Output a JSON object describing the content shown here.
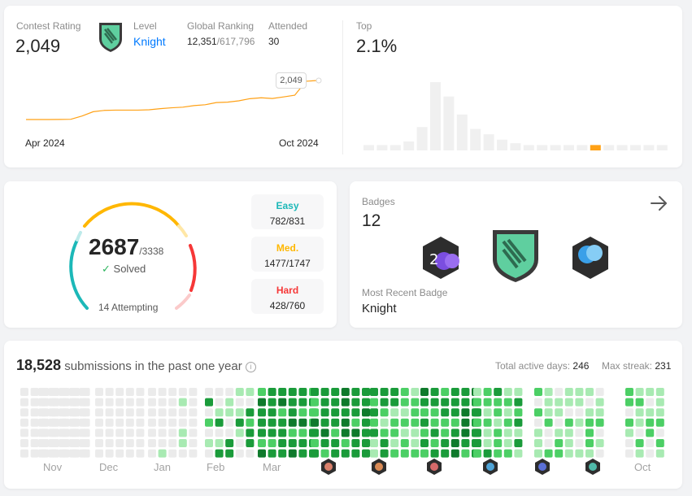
{
  "contest": {
    "rating_label": "Contest Rating",
    "rating_value": "2,049",
    "level_label": "Level",
    "level_value": "Knight",
    "global_ranking_label": "Global Ranking",
    "global_rank": "12,351",
    "global_total": "/617,796",
    "attended_label": "Attended",
    "attended_value": "30",
    "chart_start": "Apr 2024",
    "chart_end": "Oct 2024",
    "tooltip_value": "2,049",
    "top_label": "Top",
    "top_value": "2.1%"
  },
  "solved": {
    "solved_count": "2687",
    "total": "/3338",
    "solved_label": "Solved",
    "attempting": "14 Attempting",
    "easy_label": "Easy",
    "easy_value": "782/831",
    "medium_label": "Med.",
    "medium_value": "1477/1747",
    "hard_label": "Hard",
    "hard_value": "428/760"
  },
  "badges": {
    "label": "Badges",
    "count": "12",
    "recent_label": "Most Recent Badge",
    "recent_value": "Knight"
  },
  "heatmap": {
    "submissions": "18,528",
    "submissions_text": "submissions in the past one year",
    "active_days_label": "Total active days:",
    "active_days_value": "246",
    "max_streak_label": "Max streak:",
    "max_streak_value": "231",
    "months": [
      "Nov",
      "Dec",
      "Jan",
      "Feb",
      "Mar",
      "Oct"
    ]
  },
  "colors": {
    "easy": "#1cb8b8",
    "medium": "#ffb700",
    "hard": "#f63737",
    "link": "#007aff",
    "chart_line": "#ffa116",
    "green_dark": "#1a9b3a",
    "green_mid": "#4ccf65",
    "green_light": "#a8eab2",
    "empty_cell": "#ebebeb"
  },
  "chart_data": {
    "type": "line",
    "title": "Contest Rating",
    "x_labels": [
      "Apr 2024",
      "Oct 2024"
    ],
    "values": [
      1600,
      1600,
      1600,
      1601,
      1603,
      1640,
      1690,
      1705,
      1708,
      1708,
      1708,
      1712,
      1725,
      1735,
      1742,
      1760,
      1770,
      1795,
      1800,
      1815,
      1840,
      1850,
      1842,
      1860,
      1880,
      2040,
      2049
    ]
  },
  "histogram_data": {
    "type": "bar",
    "values": [
      3,
      3,
      3,
      5,
      13,
      38,
      30,
      20,
      12,
      9,
      6,
      4,
      3,
      3,
      3,
      3,
      3,
      3,
      3,
      3,
      3,
      3,
      3
    ],
    "highlight_index": 17
  }
}
